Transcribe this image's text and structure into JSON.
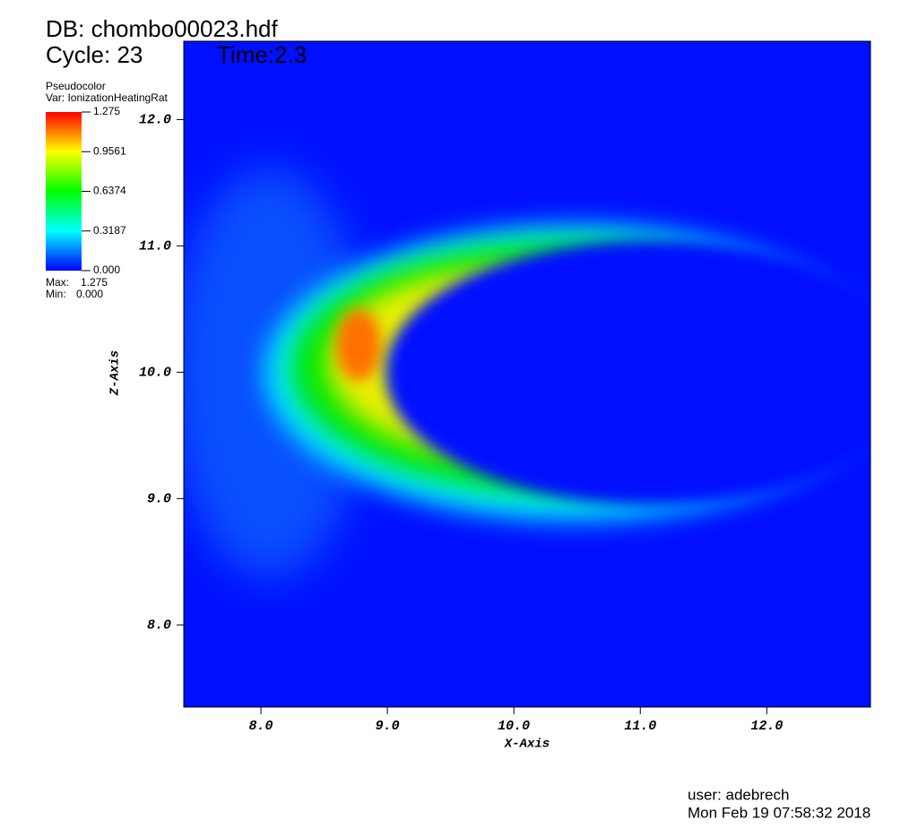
{
  "chart_data": {
    "type": "pseudocolor",
    "title": "DB: chombo00023.hdf",
    "cycle": "Cycle: 23",
    "time": "Time:2.3",
    "plot_kind": "Pseudocolor",
    "variable": "Var: IonizationHeatingRat",
    "x_label": "X-Axis",
    "y_label": "Z-Axis",
    "xlim": [
      7.39,
      12.82
    ],
    "ylim": [
      7.35,
      12.62
    ],
    "xticks": [
      {
        "value": 8,
        "label": "8.0"
      },
      {
        "value": 9,
        "label": "9.0"
      },
      {
        "value": 10,
        "label": "10.0"
      },
      {
        "value": 11,
        "label": "11.0"
      },
      {
        "value": 12,
        "label": "12.0"
      }
    ],
    "yticks": [
      {
        "value": 8,
        "label": "8.0"
      },
      {
        "value": 9,
        "label": "9.0"
      },
      {
        "value": 10,
        "label": "10.0"
      },
      {
        "value": 11,
        "label": "11.0"
      },
      {
        "value": 12,
        "label": "12.0"
      }
    ],
    "colorbar": {
      "clim": [
        0,
        1.275
      ],
      "colors": [
        "#0000ff",
        "#00ffff",
        "#00ff00",
        "#ffff00",
        "#ff0000"
      ],
      "ticks": [
        1.275,
        0.9561,
        0.6374,
        0.3187,
        {
          "value": 0,
          "label": "0.000"
        }
      ],
      "max_label": "Max:",
      "max": 1.275,
      "min_label": "Min:",
      "min": {
        "value": 0,
        "label": "0.000"
      }
    },
    "user": "user: adebrech",
    "date": "Mon Feb 19 07:58:32 2018"
  }
}
